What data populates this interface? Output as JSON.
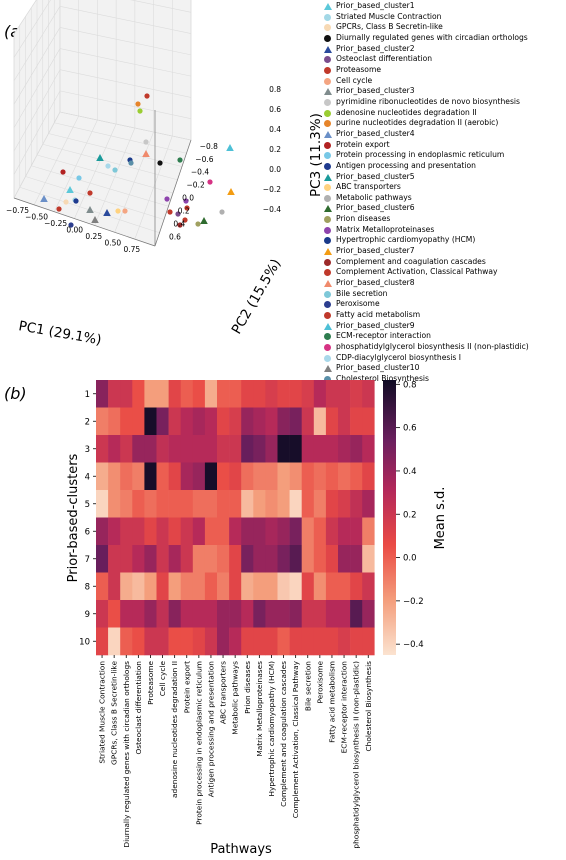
{
  "panels": {
    "a": "(a)",
    "b": "(b)"
  },
  "chart_data": [
    {
      "type": "scatter",
      "projection": "3d",
      "xlabel": "PC1 (29.1%)",
      "ylabel": "PC2 (15.5%)",
      "zlabel": "PC3 (11.3%)",
      "x_ticks": [
        "−0.75",
        "−0.50",
        "−0.25",
        "0.00",
        "0.25",
        "0.50",
        "0.75"
      ],
      "y_ticks": [
        "−0.8",
        "−0.6",
        "−0.4",
        "−0.2",
        "0.0",
        "0.2",
        "0.4",
        "0.6"
      ],
      "z_ticks": [
        "−0.4",
        "−0.2",
        "0.0",
        "0.2",
        "0.4",
        "0.6",
        "0.8"
      ],
      "grid": true,
      "legend_position": "right",
      "legend": [
        {
          "label": "Prior_based_cluster1",
          "marker": "triangle",
          "color": "#5bc8d9"
        },
        {
          "label": "Striated Muscle Contraction",
          "marker": "circle",
          "color": "#a3d8e6"
        },
        {
          "label": "GPCRs, Class B Secretin-like",
          "marker": "circle",
          "color": "#f7d9b4"
        },
        {
          "label": "Diurnally regulated genes with  circadian orthologs",
          "marker": "circle",
          "color": "#111111"
        },
        {
          "label": "Prior_based_cluster2",
          "marker": "triangle",
          "color": "#2a4a9c"
        },
        {
          "label": "Osteoclast differentiation",
          "marker": "circle",
          "color": "#7b4d8d"
        },
        {
          "label": "Proteasome",
          "marker": "circle",
          "color": "#c0392b"
        },
        {
          "label": "Cell cycle",
          "marker": "circle",
          "color": "#f4a582"
        },
        {
          "label": "Prior_based_cluster3",
          "marker": "triangle",
          "color": "#7f8c8d"
        },
        {
          "label": "pyrimidine ribonucleotides de novo biosynthesis",
          "marker": "circle",
          "color": "#c7c7c7"
        },
        {
          "label": "adenosine nucleotides degradation II",
          "marker": "circle",
          "color": "#9acd32"
        },
        {
          "label": "purine nucleotides degradation II (aerobic)",
          "marker": "circle",
          "color": "#e6842a"
        },
        {
          "label": "Prior_based_cluster4",
          "marker": "triangle",
          "color": "#6a8fc7"
        },
        {
          "label": "Protein export",
          "marker": "circle",
          "color": "#b22222"
        },
        {
          "label": "Protein processing in endoplasmic reticulum",
          "marker": "circle",
          "color": "#78c8e6"
        },
        {
          "label": "Antigen processing and presentation",
          "marker": "circle",
          "color": "#1f3b8f"
        },
        {
          "label": "Prior_based_cluster5",
          "marker": "triangle",
          "color": "#1a9a9a"
        },
        {
          "label": "ABC transporters",
          "marker": "circle",
          "color": "#ffd27f"
        },
        {
          "label": "Metabolic pathways",
          "marker": "circle",
          "color": "#b0b0b0"
        },
        {
          "label": "Prior_based_cluster6",
          "marker": "triangle",
          "color": "#2f6b2f"
        },
        {
          "label": "Prion diseases",
          "marker": "circle",
          "color": "#a0a060"
        },
        {
          "label": "Matrix Metalloproteinases",
          "marker": "circle",
          "color": "#8e44ad"
        },
        {
          "label": "Hypertrophic cardiomyopathy (HCM)",
          "marker": "circle",
          "color": "#1a3a8a"
        },
        {
          "label": "Prior_based_cluster7",
          "marker": "triangle",
          "color": "#f39c12"
        },
        {
          "label": "Complement and coagulation cascades",
          "marker": "circle",
          "color": "#9c2a2a"
        },
        {
          "label": "Complement Activation, Classical Pathway",
          "marker": "circle",
          "color": "#c0392b"
        },
        {
          "label": "Prior_based_cluster8",
          "marker": "triangle",
          "color": "#f08a6c"
        },
        {
          "label": "Bile secretion",
          "marker": "circle",
          "color": "#7ec8d8"
        },
        {
          "label": "Peroxisome",
          "marker": "circle",
          "color": "#2c3e8f"
        },
        {
          "label": "Fatty acid metabolism",
          "marker": "circle",
          "color": "#c0392b"
        },
        {
          "label": "Prior_based_cluster9",
          "marker": "triangle",
          "color": "#4dc0d6"
        },
        {
          "label": "ECM-receptor interaction",
          "marker": "circle",
          "color": "#2e7d4f"
        },
        {
          "label": "phosphatidylglycerol biosynthesis II (non-plastidic)",
          "marker": "circle",
          "color": "#d63384"
        },
        {
          "label": "CDP-diacylglycerol biosynthesis I",
          "marker": "circle",
          "color": "#a8d8ea"
        },
        {
          "label": "Prior_based_cluster10",
          "marker": "triangle",
          "color": "#808080"
        },
        {
          "label": "Cholesterol Biosynthesis",
          "marker": "circle",
          "color": "#5a8fa8"
        }
      ]
    },
    {
      "type": "heatmap",
      "xlabel": "Pathways",
      "ylabel": "Prior-based-clusters",
      "colorbar_label": "Mean s.d.",
      "colorbar_ticks": [
        "0.8",
        "0.6",
        "0.4",
        "0.2",
        "0.0",
        "−0.2",
        "−0.4"
      ],
      "vmin": -0.45,
      "vmax": 0.82,
      "rows": [
        "1",
        "2",
        "3",
        "4",
        "5",
        "6",
        "7",
        "8",
        "9",
        "10"
      ],
      "columns": [
        "Striated Muscle Contraction",
        "GPCRs, Class B Secretin-like",
        "Diurnally regulated genes with  circadian orthologs",
        "Osteoclast differentiation",
        "Proteasome",
        "Cell cycle",
        "adenosine nucleotides degradation II",
        "Protein export",
        "Protein processing in endoplasmic reticulum",
        "Antigen processing and presentation",
        "ABC transporters",
        "Metabolic pathways",
        "Prion diseases",
        "Matrix Metalloproteinases",
        "Hypertrophic cardiomyopathy (HCM)",
        "Complement and coagulation cascades",
        "Complement Activation, Classical Pathway",
        "Bile secretion",
        "Peroxisome",
        "Fatty acid metabolism",
        "ECM-receptor interaction",
        "phosphatidylglycerol biosynthesis II (non-plastidic)",
        "Cholesterol Biosynthesis"
      ],
      "values": [
        [
          0.45,
          0.2,
          0.2,
          0.05,
          -0.2,
          -0.2,
          0.1,
          0.0,
          0.05,
          -0.25,
          0.0,
          0.0,
          0.1,
          0.1,
          0.15,
          0.1,
          0.1,
          0.15,
          0.3,
          0.2,
          0.2,
          0.15,
          0.2
        ],
        [
          -0.1,
          -0.05,
          0.05,
          0.05,
          0.8,
          0.5,
          0.2,
          0.3,
          0.35,
          0.3,
          0.1,
          0.15,
          0.4,
          0.35,
          0.3,
          0.45,
          0.5,
          0.2,
          -0.3,
          0.1,
          0.2,
          0.1,
          0.1
        ],
        [
          0.2,
          0.3,
          0.2,
          0.4,
          0.4,
          0.25,
          0.3,
          0.3,
          0.3,
          0.3,
          0.2,
          0.2,
          0.55,
          0.5,
          0.4,
          0.8,
          0.8,
          0.3,
          0.3,
          0.3,
          0.35,
          0.4,
          0.3
        ],
        [
          -0.25,
          -0.15,
          -0.05,
          -0.1,
          0.8,
          0.0,
          0.1,
          0.35,
          0.4,
          0.8,
          0.05,
          0.1,
          -0.05,
          -0.1,
          -0.1,
          -0.2,
          -0.15,
          0.0,
          -0.05,
          0.0,
          -0.05,
          0.0,
          0.1
        ],
        [
          -0.4,
          -0.15,
          -0.1,
          0.0,
          -0.05,
          0.0,
          0.0,
          0.0,
          -0.05,
          -0.05,
          0.0,
          0.0,
          -0.3,
          -0.2,
          -0.15,
          -0.2,
          -0.4,
          0.0,
          -0.1,
          0.1,
          0.15,
          0.25,
          0.35
        ],
        [
          0.4,
          0.3,
          0.2,
          0.2,
          0.1,
          0.2,
          0.1,
          0.2,
          0.3,
          0.0,
          0.0,
          0.3,
          0.4,
          0.4,
          0.35,
          0.4,
          0.5,
          -0.1,
          0.0,
          0.2,
          0.3,
          0.3,
          -0.1
        ],
        [
          0.55,
          0.2,
          0.2,
          0.3,
          0.4,
          0.2,
          0.35,
          0.2,
          -0.1,
          -0.1,
          -0.05,
          0.1,
          0.5,
          0.4,
          0.4,
          0.5,
          0.6,
          -0.1,
          0.0,
          0.1,
          0.4,
          0.4,
          -0.3
        ],
        [
          0.0,
          0.2,
          -0.25,
          -0.3,
          -0.2,
          0.1,
          -0.2,
          -0.1,
          -0.1,
          0.0,
          -0.1,
          0.1,
          -0.25,
          -0.2,
          -0.2,
          -0.35,
          -0.4,
          0.1,
          -0.15,
          0.0,
          0.0,
          0.1,
          0.2
        ],
        [
          0.2,
          0.05,
          0.3,
          0.3,
          0.4,
          0.25,
          0.45,
          0.3,
          0.3,
          0.3,
          0.4,
          0.4,
          0.3,
          0.5,
          0.4,
          0.4,
          0.45,
          0.2,
          0.2,
          0.3,
          0.3,
          0.6,
          0.4
        ],
        [
          0.1,
          -0.4,
          0.0,
          0.05,
          0.2,
          0.2,
          0.05,
          0.05,
          0.1,
          0.2,
          0.4,
          0.3,
          0.1,
          0.1,
          0.1,
          0.0,
          0.1,
          0.1,
          0.1,
          0.1,
          0.15,
          0.1,
          0.1
        ]
      ]
    }
  ]
}
